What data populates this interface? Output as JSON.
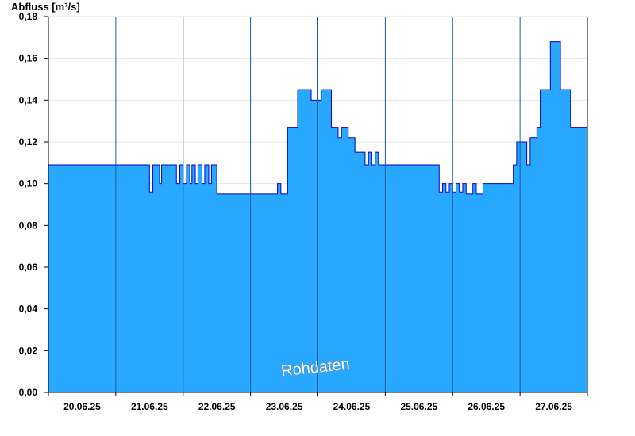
{
  "chart_data": {
    "type": "area",
    "ylabel": "Abfluss [m³/s]",
    "ylim": [
      0,
      0.18
    ],
    "yticks": [
      0.0,
      0.02,
      0.04,
      0.06,
      0.08,
      0.1,
      0.12,
      0.14,
      0.16,
      0.18
    ],
    "ytick_labels": [
      "0,00",
      "0,02",
      "0,04",
      "0,06",
      "0,08",
      "0,10",
      "0,12",
      "0,14",
      "0,16",
      "0,18"
    ],
    "xlim": [
      0,
      8
    ],
    "xtick_labels": [
      "20.06.25",
      "21.06.25",
      "22.06.25",
      "23.06.25",
      "24.06.25",
      "25.06.25",
      "26.06.25",
      "27.06.25"
    ],
    "grid": {
      "horizontal": true,
      "day_separators": true
    },
    "fill_color": "#29a8ff",
    "line_color": "#0000cc",
    "watermark": "Rohdaten",
    "series": [
      {
        "x": [
          0,
          1.5,
          1.5,
          1.55,
          1.55,
          1.65,
          1.65,
          1.68,
          1.68,
          1.9,
          1.9,
          1.95,
          1.95,
          2.0,
          2.0,
          2.05,
          2.05,
          2.1,
          2.1,
          2.13,
          2.13,
          2.18,
          2.18,
          2.22,
          2.22,
          2.28,
          2.28,
          2.32,
          2.32,
          2.38,
          2.38,
          2.42,
          2.42,
          2.5,
          2.5,
          3.4,
          3.4,
          3.45,
          3.45,
          3.55,
          3.55,
          3.7,
          3.7,
          3.9,
          3.9,
          4.05,
          4.05,
          4.2,
          4.2,
          4.3,
          4.3,
          4.35,
          4.35,
          4.45,
          4.45,
          4.55,
          4.55,
          4.7,
          4.7,
          4.75,
          4.75,
          4.8,
          4.8,
          4.85,
          4.85,
          4.9,
          4.9,
          5.8,
          5.8,
          5.85,
          5.85,
          5.9,
          5.9,
          5.95,
          5.95,
          6.0,
          6.0,
          6.05,
          6.05,
          6.1,
          6.1,
          6.15,
          6.15,
          6.2,
          6.2,
          6.3,
          6.3,
          6.35,
          6.35,
          6.45,
          6.45,
          6.9,
          6.9,
          6.95,
          6.95,
          7.1,
          7.1,
          7.15,
          7.15,
          7.25,
          7.25,
          7.3,
          7.3,
          7.45,
          7.45,
          7.6,
          7.6,
          7.75,
          7.75,
          8.0
        ],
        "y": [
          0.109,
          0.109,
          0.096,
          0.096,
          0.109,
          0.109,
          0.1,
          0.1,
          0.109,
          0.109,
          0.1,
          0.1,
          0.109,
          0.109,
          0.1,
          0.1,
          0.109,
          0.109,
          0.1,
          0.1,
          0.109,
          0.109,
          0.1,
          0.1,
          0.109,
          0.109,
          0.1,
          0.1,
          0.109,
          0.109,
          0.1,
          0.1,
          0.109,
          0.109,
          0.095,
          0.095,
          0.1,
          0.1,
          0.095,
          0.095,
          0.127,
          0.127,
          0.145,
          0.145,
          0.14,
          0.14,
          0.145,
          0.145,
          0.127,
          0.127,
          0.122,
          0.122,
          0.127,
          0.127,
          0.122,
          0.122,
          0.115,
          0.115,
          0.109,
          0.109,
          0.115,
          0.115,
          0.109,
          0.109,
          0.115,
          0.115,
          0.109,
          0.109,
          0.096,
          0.096,
          0.1,
          0.1,
          0.096,
          0.096,
          0.1,
          0.1,
          0.096,
          0.096,
          0.1,
          0.1,
          0.096,
          0.096,
          0.1,
          0.1,
          0.095,
          0.095,
          0.1,
          0.1,
          0.095,
          0.095,
          0.1,
          0.1,
          0.109,
          0.109,
          0.12,
          0.12,
          0.109,
          0.109,
          0.122,
          0.122,
          0.127,
          0.127,
          0.145,
          0.145,
          0.168,
          0.168,
          0.145,
          0.145,
          0.127,
          0.127
        ]
      }
    ]
  }
}
